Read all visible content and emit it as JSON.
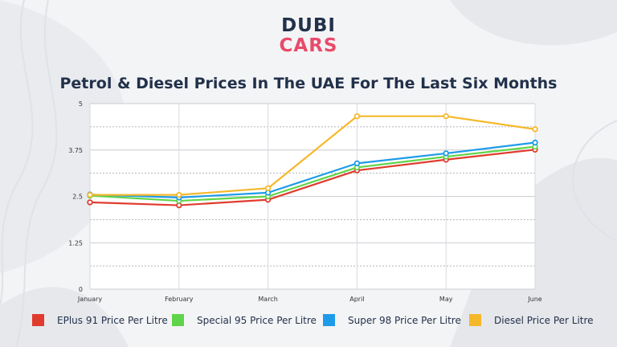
{
  "brand": {
    "line1": "DUBI",
    "line2": "CARS"
  },
  "chart_data": {
    "type": "line",
    "title": "Petrol & Diesel Prices In The UAE For The Last Six Months",
    "categories": [
      "January",
      "February",
      "March",
      "April",
      "May",
      "June"
    ],
    "yticks": [
      "0",
      "1.25",
      "2.5",
      "3.75",
      "5"
    ],
    "ylim": [
      0,
      5
    ],
    "grid": true,
    "legend_position": "bottom",
    "series": [
      {
        "name": "EPlus 91 Price Per Litre",
        "color": "#e03c2e",
        "values": [
          2.34,
          2.26,
          2.41,
          3.2,
          3.49,
          3.76
        ]
      },
      {
        "name": "Special 95 Price Per Litre",
        "color": "#5fd44a",
        "values": [
          2.52,
          2.38,
          2.5,
          3.28,
          3.57,
          3.84
        ]
      },
      {
        "name": "Super 98 Price Per Litre",
        "color": "#1e9be8",
        "values": [
          2.55,
          2.47,
          2.6,
          3.39,
          3.66,
          3.95
        ]
      },
      {
        "name": "Diesel Price Per Litre",
        "color": "#f5b82a",
        "values": [
          2.54,
          2.54,
          2.72,
          4.66,
          4.66,
          4.31
        ]
      }
    ]
  }
}
